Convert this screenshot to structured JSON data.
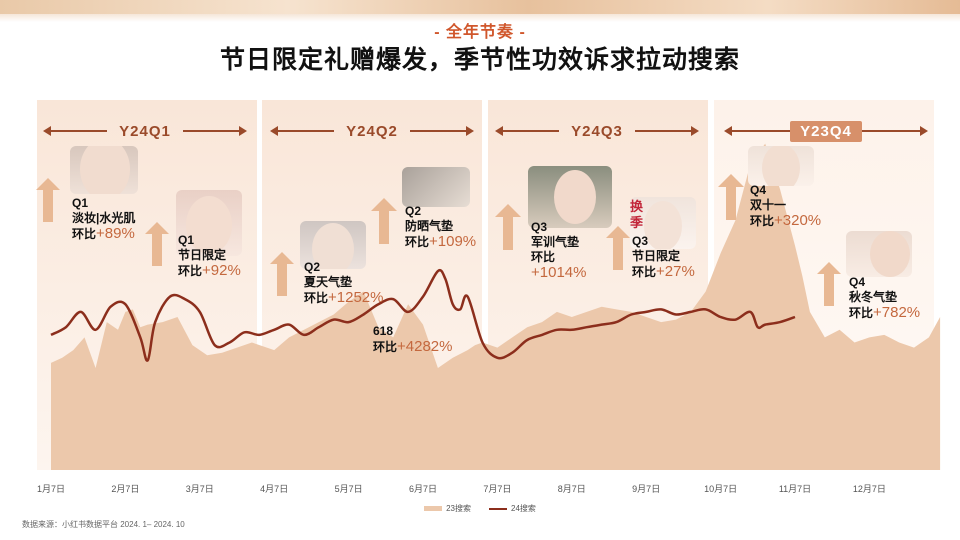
{
  "header": {
    "subtitle": "- 全年节奏 -",
    "title": "节日限定礼赠爆发，季节性功效诉求拉动搜索"
  },
  "quarters": [
    {
      "label": "Y24Q1"
    },
    {
      "label": "Y24Q2"
    },
    {
      "label": "Y24Q3"
    },
    {
      "label": "Y23Q4",
      "boxed": true
    }
  ],
  "annotations": [
    {
      "line1": "Q1",
      "line2": "淡妆|水光肌",
      "prefix": "环比",
      "pct": "+89%"
    },
    {
      "line1": "Q1",
      "line2": "节日限定",
      "prefix": "环比",
      "pct": "+92%"
    },
    {
      "line1": "Q2",
      "line2": "夏天气垫",
      "prefix": "环比",
      "pct": "+1252%"
    },
    {
      "line1": "Q2",
      "line2": "防晒气垫",
      "prefix": "环比",
      "pct": "+109%"
    },
    {
      "line1": "618",
      "line2": "",
      "prefix": "环比",
      "pct": "+4282%"
    },
    {
      "line1": "Q3",
      "line2": "军训气垫",
      "prefix": "环比",
      "pct": "+1014%"
    },
    {
      "line1": "Q3",
      "line2": "节日限定",
      "prefix": "环比",
      "pct": "+27%"
    },
    {
      "line1": "Q4",
      "line2": "双十一",
      "prefix": "环比",
      "pct": "+320%"
    },
    {
      "line1": "Q4",
      "line2": "秋冬气垫",
      "prefix": "环比",
      "pct": "+782%"
    }
  ],
  "photo_badge": "换季",
  "colors": {
    "area_23": "#ecc8ab",
    "line_24": "#8c2e1c",
    "accent": "#d0562b",
    "panel_bg": "#fbeee4"
  },
  "chart_data": {
    "type": "area",
    "x_tick_labels": [
      "1月7日",
      "2月7日",
      "3月7日",
      "4月7日",
      "5月7日",
      "6月7日",
      "7月7日",
      "8月7日",
      "9月7日",
      "10月7日",
      "11月7日",
      "12月7日"
    ],
    "series": [
      {
        "name": "23搜索",
        "type": "area",
        "x": [
          0,
          0.15,
          0.3,
          0.45,
          0.6,
          0.75,
          0.9,
          1.0,
          1.1,
          1.2,
          1.3,
          1.5,
          1.7,
          1.9,
          2.1,
          2.3,
          2.5,
          2.7,
          3.0,
          3.2,
          3.4,
          3.6,
          3.8,
          4.0,
          4.2,
          4.4,
          4.6,
          4.8,
          5.0,
          5.2,
          5.4,
          5.6,
          5.7,
          5.8,
          6.0,
          6.2,
          6.4,
          6.6,
          6.8,
          7.0,
          7.2,
          7.4,
          7.6,
          7.8,
          8.0,
          8.2,
          8.4,
          8.6,
          8.8,
          9.0,
          9.2,
          9.4,
          9.6,
          9.8,
          10.0,
          10.1,
          10.2,
          10.4,
          10.6,
          10.8,
          11.0,
          11.2,
          11.4,
          11.6,
          11.8,
          11.95
        ],
        "values": [
          42,
          44,
          47,
          52,
          40,
          58,
          55,
          62,
          63,
          56,
          57,
          58,
          60,
          49,
          45,
          46,
          48,
          50,
          47,
          52,
          55,
          58,
          61,
          66,
          70,
          56,
          52,
          65,
          57,
          40,
          44,
          47,
          49,
          50,
          48,
          52,
          56,
          58,
          62,
          60,
          62,
          64,
          63,
          62,
          60,
          58,
          59,
          62,
          70,
          85,
          98,
          120,
          128,
          110,
          88,
          76,
          62,
          52,
          55,
          50,
          52,
          53,
          50,
          48,
          52,
          60
        ]
      },
      {
        "name": "24搜索",
        "type": "line",
        "x": [
          0,
          0.2,
          0.4,
          0.6,
          0.8,
          1.0,
          1.2,
          1.3,
          1.4,
          1.6,
          1.8,
          2.0,
          2.2,
          2.4,
          2.6,
          2.8,
          3.0,
          3.2,
          3.4,
          3.6,
          3.8,
          4.0,
          4.2,
          4.4,
          4.6,
          4.8,
          5.0,
          5.2,
          5.3,
          5.4,
          5.5,
          5.6,
          5.8,
          6.0,
          6.2,
          6.4,
          6.6,
          6.8,
          7.0,
          7.2,
          7.4,
          7.6,
          7.8,
          8.0,
          8.2,
          8.4,
          8.6,
          8.8,
          9.0,
          9.2,
          9.4,
          9.5,
          9.6,
          9.8,
          10.0
        ],
        "values": [
          53,
          56,
          62,
          55,
          64,
          65,
          52,
          43,
          58,
          68,
          67,
          62,
          49,
          50,
          54,
          53,
          55,
          57,
          53,
          56,
          59,
          58,
          61,
          65,
          67,
          62,
          68,
          78,
          75,
          65,
          63,
          68,
          50,
          44,
          46,
          51,
          53,
          55,
          55,
          56,
          57,
          58,
          61,
          62,
          63,
          61,
          62,
          63,
          60,
          59,
          62,
          56,
          57,
          58,
          60
        ]
      }
    ],
    "xlabel": "",
    "ylabel": "",
    "legend": [
      "23搜索",
      "24搜索"
    ],
    "legend_position": "bottom",
    "grid": false
  },
  "footer": {
    "source": "数据来源：小红书数据平台 2024. 1– 2024. 10"
  }
}
